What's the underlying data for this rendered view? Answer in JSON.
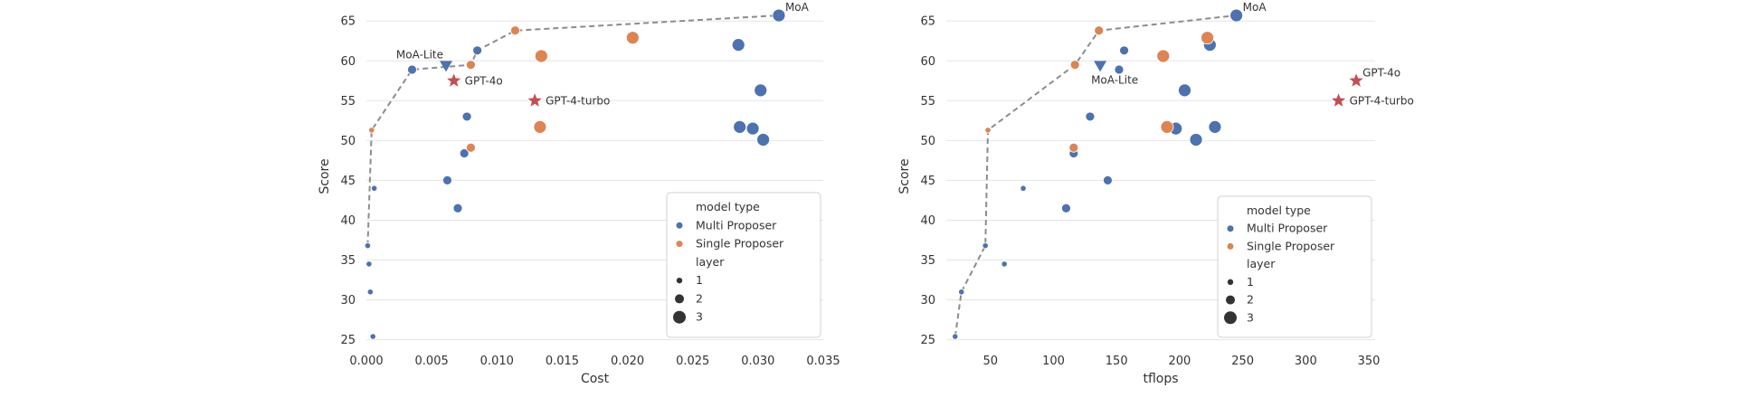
{
  "colors": {
    "multi_proposer": "#4c72b0",
    "single_proposer": "#dd8452",
    "reference": "#c44e52",
    "frontier": "#8c8c8c",
    "grid": "#e5e5e5"
  },
  "chart_data": [
    {
      "type": "scatter",
      "xlabel": "Cost",
      "ylabel": "Score",
      "x_ticks": [
        "0.000",
        "0.005",
        "0.010",
        "0.015",
        "0.020",
        "0.025",
        "0.030",
        "0.035"
      ],
      "y_ticks": [
        "25",
        "30",
        "35",
        "40",
        "45",
        "50",
        "55",
        "60",
        "65"
      ],
      "xlim": [
        0,
        0.035
      ],
      "ylim": [
        24.5,
        66.5
      ],
      "grid": "horizontal",
      "legend": {
        "placement": "lower-right",
        "title": "model type",
        "entries": [
          "Multi Proposer",
          "Single Proposer"
        ],
        "size_title": "layer",
        "size_entries": [
          "1",
          "2",
          "3"
        ]
      },
      "series": [
        {
          "name": "Multi Proposer",
          "points": [
            {
              "x": 0.0001,
              "y": 36.8,
              "layer": 1
            },
            {
              "x": 0.0002,
              "y": 34.5,
              "layer": 1
            },
            {
              "x": 0.0003,
              "y": 31.0,
              "layer": 1
            },
            {
              "x": 0.0005,
              "y": 25.4,
              "layer": 1
            },
            {
              "x": 0.0006,
              "y": 44.0,
              "layer": 1
            },
            {
              "x": 0.0035,
              "y": 58.9,
              "layer": 2
            },
            {
              "x": 0.0062,
              "y": 45.0,
              "layer": 2
            },
            {
              "x": 0.007,
              "y": 41.5,
              "layer": 2
            },
            {
              "x": 0.0075,
              "y": 48.4,
              "layer": 2
            },
            {
              "x": 0.0077,
              "y": 53.0,
              "layer": 2
            },
            {
              "x": 0.0085,
              "y": 61.3,
              "layer": 2
            },
            {
              "x": 0.0285,
              "y": 62.0,
              "layer": 3
            },
            {
              "x": 0.0286,
              "y": 51.7,
              "layer": 3
            },
            {
              "x": 0.0296,
              "y": 51.5,
              "layer": 3
            },
            {
              "x": 0.0302,
              "y": 56.3,
              "layer": 3
            },
            {
              "x": 0.0304,
              "y": 50.1,
              "layer": 3
            },
            {
              "x": 0.0316,
              "y": 65.7,
              "layer": 3
            }
          ]
        },
        {
          "name": "Single Proposer",
          "points": [
            {
              "x": 0.0004,
              "y": 51.3,
              "layer": 1
            },
            {
              "x": 0.008,
              "y": 49.1,
              "layer": 2
            },
            {
              "x": 0.008,
              "y": 59.5,
              "layer": 2
            },
            {
              "x": 0.0114,
              "y": 63.8,
              "layer": 2
            },
            {
              "x": 0.0133,
              "y": 51.7,
              "layer": 3
            },
            {
              "x": 0.0134,
              "y": 60.6,
              "layer": 3
            },
            {
              "x": 0.0204,
              "y": 62.9,
              "layer": 3
            }
          ]
        }
      ],
      "references": [
        {
          "label": "GPT-4o",
          "x": 0.0067,
          "y": 57.5,
          "marker": "star"
        },
        {
          "label": "GPT-4-turbo",
          "x": 0.0129,
          "y": 55.0,
          "marker": "star"
        },
        {
          "label": "MoA-Lite",
          "x": 0.0061,
          "y": 59.3,
          "marker": "triangle"
        }
      ],
      "frontier": [
        [
          0.0001,
          36.8
        ],
        [
          0.0004,
          51.3
        ],
        [
          0.0035,
          58.9
        ],
        [
          0.008,
          59.5
        ],
        [
          0.0085,
          61.3
        ],
        [
          0.0114,
          63.8
        ],
        [
          0.0316,
          65.7
        ]
      ],
      "annotations": [
        {
          "text": "MoA",
          "x": 0.0316,
          "y": 65.7,
          "anchor": "above-right"
        },
        {
          "text": "MoA-Lite",
          "x": 0.0061,
          "y": 59.3,
          "anchor": "above-left"
        },
        {
          "text": "GPT-4o",
          "x": 0.0067,
          "y": 57.5,
          "anchor": "right"
        },
        {
          "text": "GPT-4-turbo",
          "x": 0.0129,
          "y": 55.0,
          "anchor": "right"
        }
      ]
    },
    {
      "type": "scatter",
      "xlabel": "tflops",
      "ylabel": "Score",
      "x_ticks": [
        "50",
        "100",
        "150",
        "200",
        "250",
        "300",
        "350"
      ],
      "y_ticks": [
        "25",
        "30",
        "35",
        "40",
        "45",
        "50",
        "55",
        "60",
        "65"
      ],
      "xlim": [
        15,
        355
      ],
      "ylim": [
        24.5,
        66.5
      ],
      "grid": "horizontal",
      "legend": {
        "placement": "lower-right",
        "title": "model type",
        "entries": [
          "Multi Proposer",
          "Single Proposer"
        ],
        "size_title": "layer",
        "size_entries": [
          "1",
          "2",
          "3"
        ]
      },
      "series": [
        {
          "name": "Multi Proposer",
          "points": [
            {
              "x": 22,
              "y": 25.4,
              "layer": 1
            },
            {
              "x": 27,
              "y": 31.0,
              "layer": 1
            },
            {
              "x": 46,
              "y": 36.8,
              "layer": 1
            },
            {
              "x": 61,
              "y": 34.5,
              "layer": 1
            },
            {
              "x": 76,
              "y": 44.0,
              "layer": 1
            },
            {
              "x": 110,
              "y": 41.5,
              "layer": 2
            },
            {
              "x": 116,
              "y": 48.4,
              "layer": 2
            },
            {
              "x": 129,
              "y": 53.0,
              "layer": 2
            },
            {
              "x": 143,
              "y": 45.0,
              "layer": 2
            },
            {
              "x": 152,
              "y": 58.9,
              "layer": 2
            },
            {
              "x": 156,
              "y": 61.3,
              "layer": 2
            },
            {
              "x": 197,
              "y": 51.5,
              "layer": 3
            },
            {
              "x": 204,
              "y": 56.3,
              "layer": 3
            },
            {
              "x": 213,
              "y": 50.1,
              "layer": 3
            },
            {
              "x": 224,
              "y": 62.0,
              "layer": 3
            },
            {
              "x": 228,
              "y": 51.7,
              "layer": 3
            },
            {
              "x": 245,
              "y": 65.7,
              "layer": 3
            }
          ]
        },
        {
          "name": "Single Proposer",
          "points": [
            {
              "x": 48,
              "y": 51.3,
              "layer": 1
            },
            {
              "x": 116,
              "y": 49.1,
              "layer": 2
            },
            {
              "x": 117,
              "y": 59.5,
              "layer": 2
            },
            {
              "x": 136,
              "y": 63.8,
              "layer": 2
            },
            {
              "x": 187,
              "y": 60.6,
              "layer": 3
            },
            {
              "x": 190,
              "y": 51.7,
              "layer": 3
            },
            {
              "x": 222,
              "y": 62.9,
              "layer": 3
            }
          ]
        }
      ],
      "references": [
        {
          "label": "GPT-4o",
          "x": 340,
          "y": 57.5,
          "marker": "star"
        },
        {
          "label": "GPT-4-turbo",
          "x": 326,
          "y": 55.0,
          "marker": "star"
        },
        {
          "label": "MoA-Lite",
          "x": 137,
          "y": 59.3,
          "marker": "triangle"
        }
      ],
      "frontier": [
        [
          22,
          25.4
        ],
        [
          27,
          31.0
        ],
        [
          46,
          36.8
        ],
        [
          48,
          51.3
        ],
        [
          117,
          59.5
        ],
        [
          136,
          63.8
        ],
        [
          245,
          65.7
        ]
      ],
      "annotations": [
        {
          "text": "MoA",
          "x": 245,
          "y": 65.7,
          "anchor": "above-right"
        },
        {
          "text": "MoA-Lite",
          "x": 137,
          "y": 59.3,
          "anchor": "below-right"
        },
        {
          "text": "GPT-4o",
          "x": 340,
          "y": 57.5,
          "anchor": "above-right"
        },
        {
          "text": "GPT-4-turbo",
          "x": 326,
          "y": 55.0,
          "anchor": "right"
        }
      ]
    }
  ]
}
